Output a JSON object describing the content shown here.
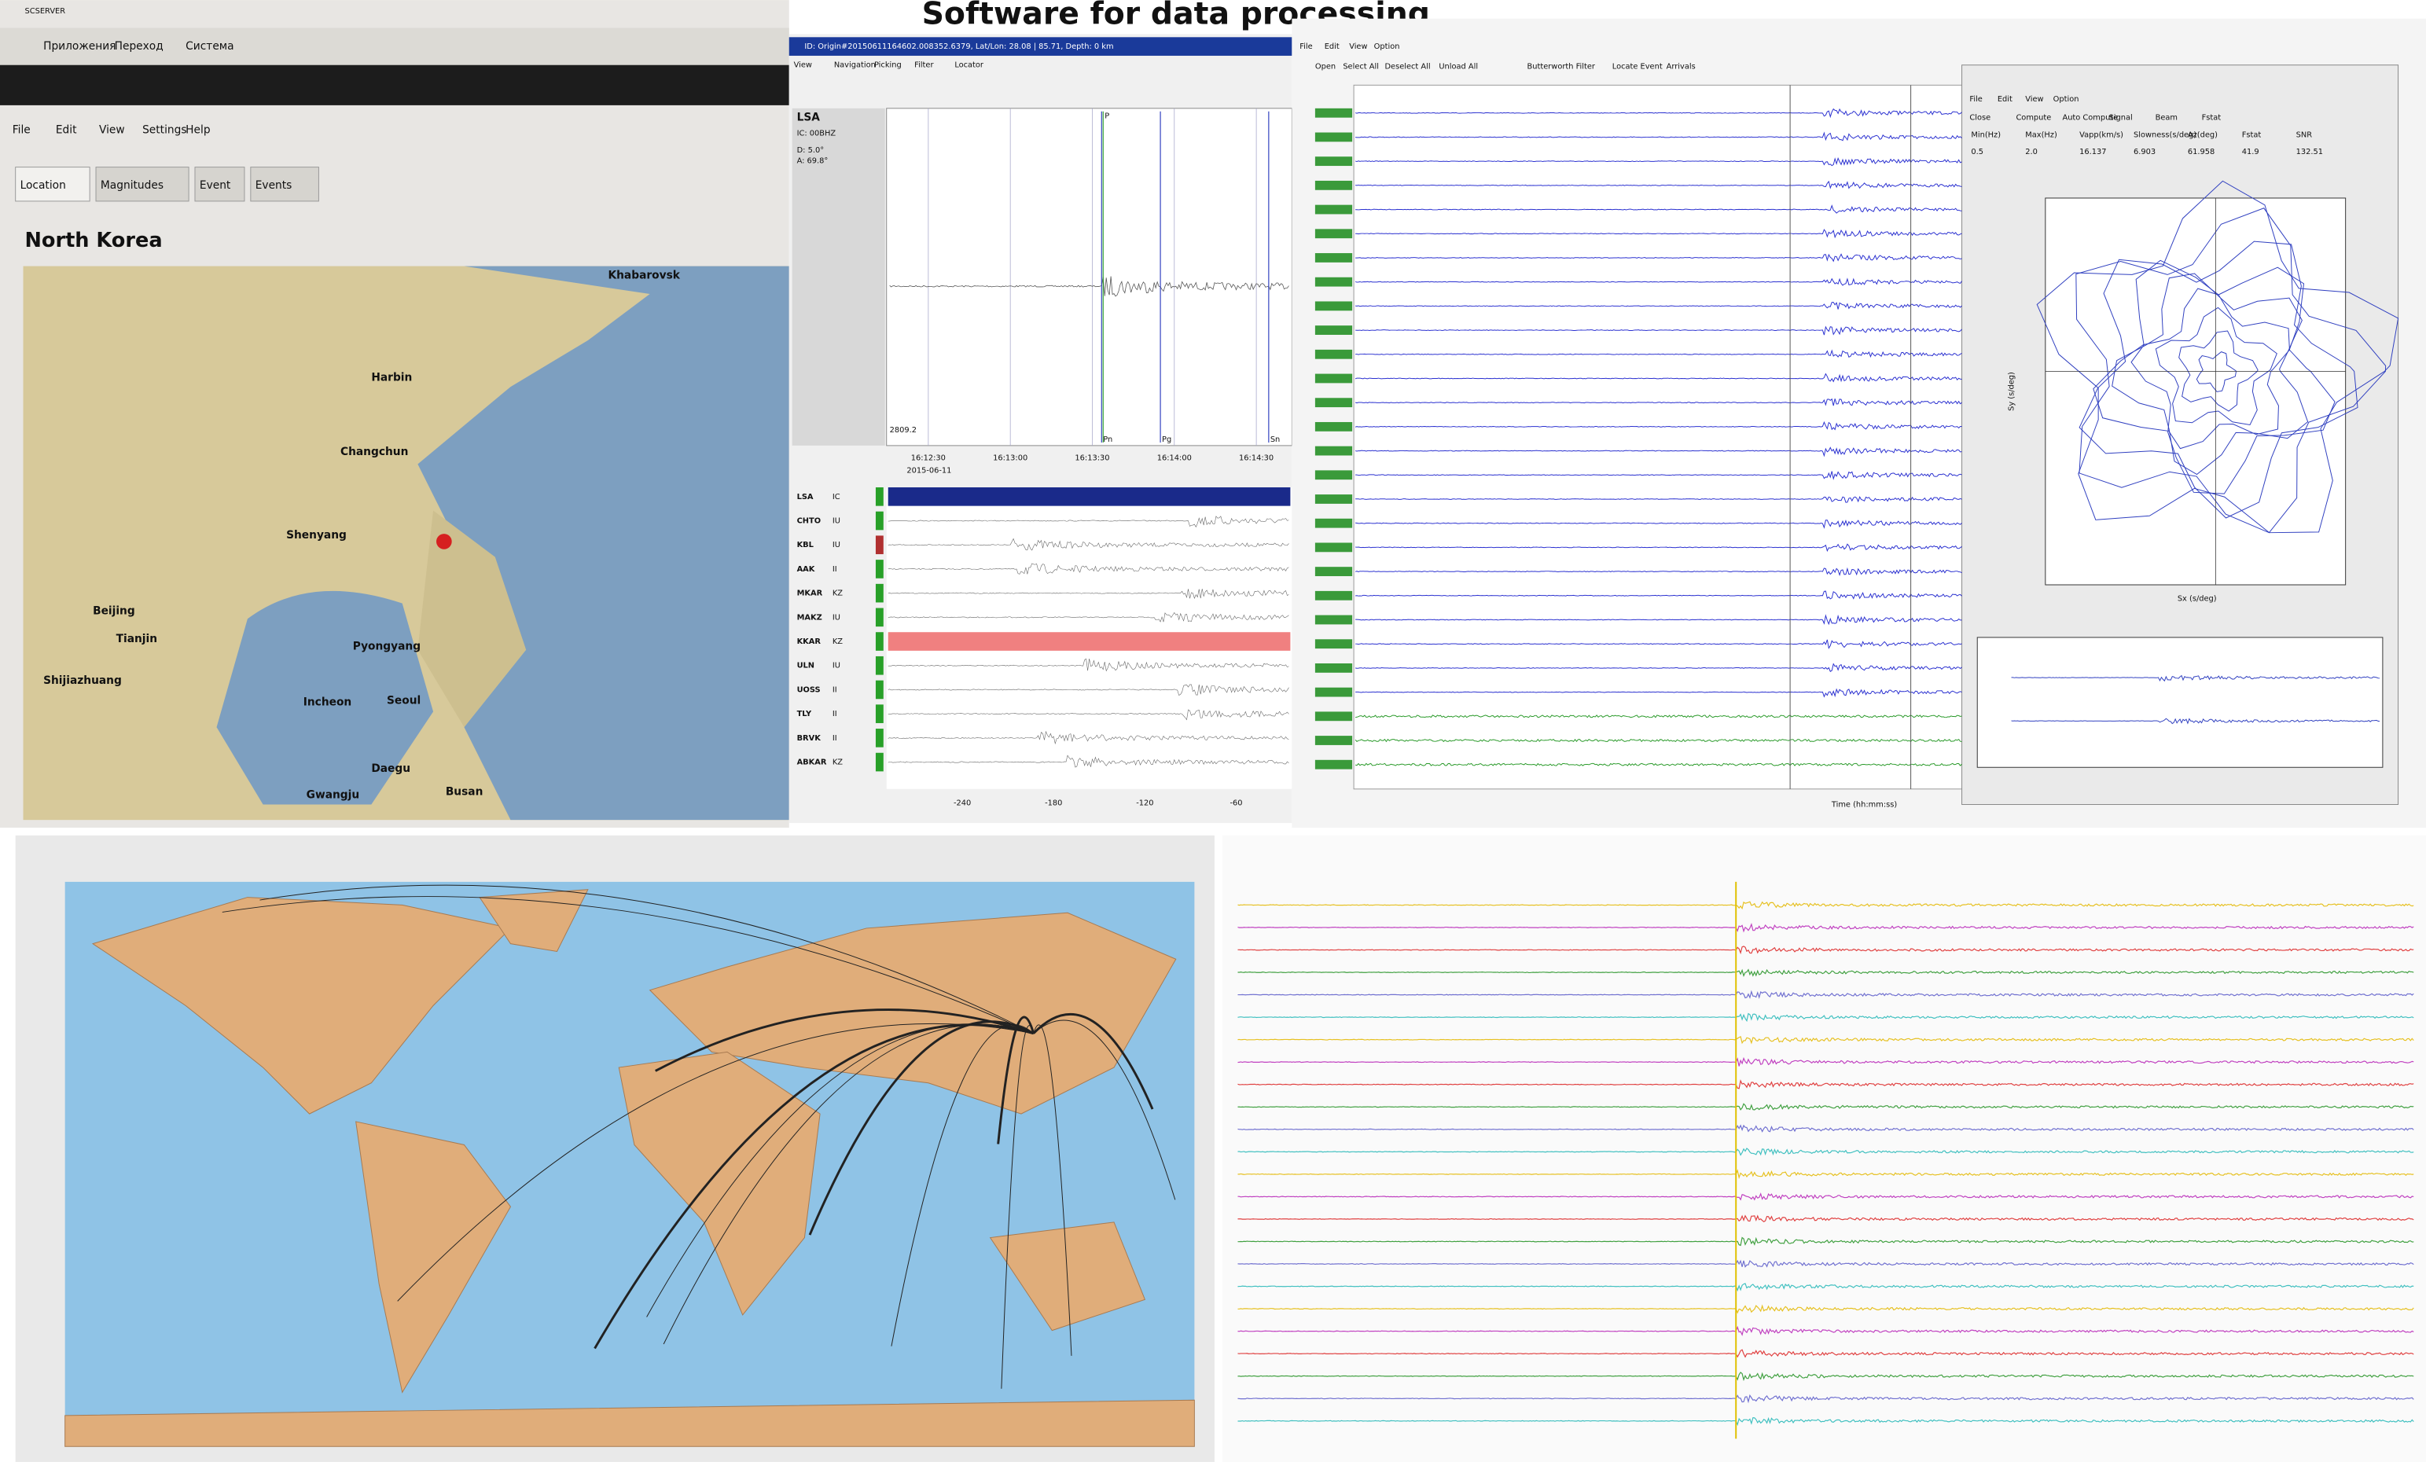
{
  "title": "Software for data processing",
  "scserver": {
    "window_title": "SCSERVER",
    "system_menu": [
      "Приложения",
      "Переход",
      "Система"
    ],
    "menu": [
      "File",
      "Edit",
      "View",
      "Settings",
      "Help"
    ],
    "tabs": [
      "Location",
      "Magnitudes",
      "Event",
      "Events"
    ],
    "region": "North Korea",
    "map_labels": [
      "Khabarovsk",
      "Harbin",
      "Changchun",
      "Shenyang",
      "Beijing",
      "Tianjin",
      "Shijiazhuang",
      "Pyongyang",
      "Incheon",
      "Seoul",
      "Daegu",
      "Gwangju",
      "Busan"
    ]
  },
  "picker": {
    "window_title": "ID: Origin#20150611164602.008352.6379, Lat/Lon: 28.08 | 85.71, Depth: 0 km",
    "menu": [
      "View",
      "Navigation",
      "Picking",
      "Filter",
      "Locator"
    ],
    "station": "LSA",
    "channel": "IC: 00BHZ",
    "distance": "D: 5.0°",
    "azimuth": "A: 69.8°",
    "amplitude": "2809.2",
    "date": "2015-06-11",
    "time_ticks": [
      "16:12:30",
      "16:13:00",
      "16:13:30",
      "16:14:00",
      "16:14:30"
    ],
    "phases": [
      "P",
      "Pn",
      "Pg",
      "Sn"
    ],
    "stations": [
      {
        "code": "LSA",
        "net": "IC"
      },
      {
        "code": "CHTO",
        "net": "IU"
      },
      {
        "code": "KBL",
        "net": "IU"
      },
      {
        "code": "AAK",
        "net": "II"
      },
      {
        "code": "MKAR",
        "net": "KZ"
      },
      {
        "code": "MAKZ",
        "net": "IU"
      },
      {
        "code": "KKAR",
        "net": "KZ"
      },
      {
        "code": "ULN",
        "net": "IU"
      },
      {
        "code": "UOSS",
        "net": "II"
      },
      {
        "code": "TLY",
        "net": "II"
      },
      {
        "code": "BRVK",
        "net": "II"
      },
      {
        "code": "ABKAR",
        "net": "KZ"
      }
    ],
    "offset_ticks": [
      "-240",
      "-180",
      "-120",
      "-60"
    ]
  },
  "trace_view": {
    "menu": [
      "File",
      "Edit",
      "View",
      "Option"
    ],
    "toolbar": [
      "Open",
      "Select All",
      "Deselect All",
      "Unload All",
      "Butterworth Filter",
      "Locate Event",
      "Arrivals"
    ],
    "x_axis_label": "Time (hh:mm:ss)"
  },
  "fk": {
    "menu": [
      "File",
      "Edit",
      "View",
      "Option"
    ],
    "toolbar": [
      "Close",
      "Compute",
      "Auto Compute",
      "Signal",
      "Beam",
      "Fstat"
    ],
    "x_label": "Sx (s/deg)",
    "y_label": "Sy (s/deg)",
    "columns": [
      "Min(Hz)",
      "Max(Hz)",
      "Vapp(km/s)",
      "Slowness(s/deg)",
      "Az(deg)",
      "Fstat",
      "SNR"
    ],
    "values": [
      "0.5",
      "2.0",
      "16.137",
      "6.903",
      "61.958",
      "41.9",
      "132.51"
    ]
  }
}
